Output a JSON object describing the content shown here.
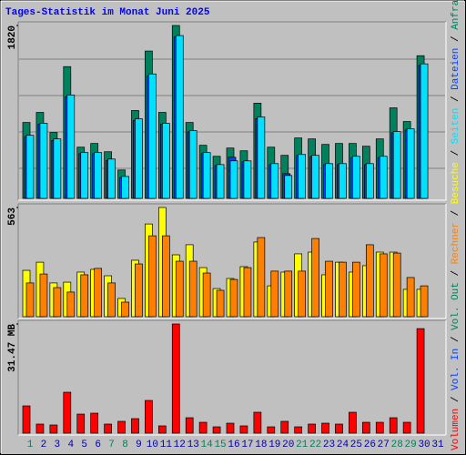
{
  "title": "Tages-Statistik im Monat Juni 2025",
  "legend_separator": " / ",
  "categories": [
    "1",
    "2",
    "3",
    "4",
    "5",
    "6",
    "7",
    "8",
    "9",
    "10",
    "11",
    "12",
    "13",
    "14",
    "15",
    "16",
    "17",
    "18",
    "19",
    "20",
    "21",
    "22",
    "23",
    "24",
    "25",
    "26",
    "27",
    "28",
    "29",
    "30",
    "31"
  ],
  "category_colors": [
    "#00805c",
    "#0000a0",
    "#0000a0",
    "#0000a0",
    "#0000a0",
    "#0000a0",
    "#00805c",
    "#00805c",
    "#0000a0",
    "#0000a0",
    "#0000a0",
    "#0000a0",
    "#0000a0",
    "#00805c",
    "#00805c",
    "#0000a0",
    "#0000a0",
    "#0000a0",
    "#0000a0",
    "#0000a0",
    "#00805c",
    "#00805c",
    "#0000a0",
    "#0000a0",
    "#0000a0",
    "#0000a0",
    "#0000a0",
    "#00805c",
    "#00805c",
    "#0000a0",
    "#0000a0"
  ],
  "chart_data": [
    {
      "type": "bar",
      "ylim": [
        0,
        1820
      ],
      "yticks": [
        1820
      ],
      "series": [
        {
          "name": "Anfragen",
          "color": "#00805c",
          "values": [
            799,
            905,
            693,
            1387,
            539,
            578,
            491,
            299,
            925,
            1551,
            905,
            1820,
            799,
            559,
            443,
            530,
            501,
            1002,
            539,
            453,
            636,
            626,
            568,
            578,
            578,
            549,
            626,
            953,
            809,
            1502,
            null
          ]
        },
        {
          "name": "Dateien",
          "color": "#0040ff",
          "values": [
            650,
            780,
            610,
            1070,
            470,
            470,
            400,
            220,
            820,
            1290,
            780,
            1700,
            700,
            470,
            345,
            433,
            385,
            840,
            355,
            260,
            450,
            440,
            355,
            355,
            430,
            355,
            430,
            690,
            720,
            1400,
            null
          ]
        },
        {
          "name": "Seiten",
          "color": "#00e0ff",
          "values": [
            664,
            790,
            626,
            1088,
            482,
            482,
            414,
            231,
            838,
            1310,
            790,
            1714,
            713,
            482,
            356,
            395,
            395,
            857,
            366,
            241,
            462,
            453,
            366,
            366,
            443,
            366,
            443,
            703,
            732,
            1416,
            null
          ]
        }
      ]
    },
    {
      "type": "bar",
      "ylim": [
        0,
        563
      ],
      "yticks": [
        563
      ],
      "series": [
        {
          "name": "Besuche",
          "color": "#ffff00",
          "values": [
            239,
            281,
            174,
            178,
            230,
            244,
            211,
            94,
            291,
            478,
            563,
            319,
            371,
            253,
            145,
            197,
            258,
            385,
            159,
            230,
            324,
            333,
            216,
            281,
            230,
            263,
            333,
            333,
            141,
            141,
            null
          ]
        },
        {
          "name": "Rechner",
          "color": "#ff8000",
          "values": [
            174,
            220,
            150,
            127,
            216,
            249,
            174,
            75,
            272,
            417,
            417,
            286,
            286,
            225,
            136,
            192,
            253,
            408,
            235,
            235,
            235,
            403,
            286,
            281,
            281,
            371,
            324,
            328,
            202,
            159,
            null
          ]
        }
      ]
    },
    {
      "type": "bar",
      "ylim": [
        0,
        31.47
      ],
      "yticks": [
        {
          "value": 31.47,
          "label": "31.47 MB"
        }
      ],
      "series": [
        {
          "name": "Vol. Out",
          "color": "#00805c",
          "values": [
            null,
            null,
            null,
            null,
            null,
            null,
            null,
            null,
            null,
            null,
            null,
            null,
            null,
            null,
            null,
            null,
            null,
            null,
            null,
            null,
            null,
            null,
            null,
            null,
            null,
            null,
            null,
            null,
            null,
            null,
            null
          ]
        },
        {
          "name": "Vol. In",
          "color": "#0040ff",
          "values": [
            null,
            null,
            null,
            null,
            null,
            null,
            null,
            null,
            null,
            null,
            null,
            null,
            null,
            null,
            null,
            null,
            null,
            null,
            null,
            null,
            null,
            null,
            null,
            null,
            null,
            null,
            null,
            null,
            null,
            null,
            null
          ]
        },
        {
          "name": "Volumen",
          "color": "#ff0000",
          "values": [
            7.86,
            2.62,
            2.36,
            11.8,
            5.5,
            5.76,
            2.62,
            3.41,
            4.19,
            9.43,
            2.1,
            31.47,
            4.45,
            3.14,
            1.83,
            2.88,
            2.1,
            6.03,
            1.83,
            3.41,
            1.83,
            2.62,
            2.88,
            2.62,
            6.03,
            3.14,
            3.14,
            4.45,
            3.14,
            30.13,
            null
          ]
        }
      ]
    }
  ]
}
